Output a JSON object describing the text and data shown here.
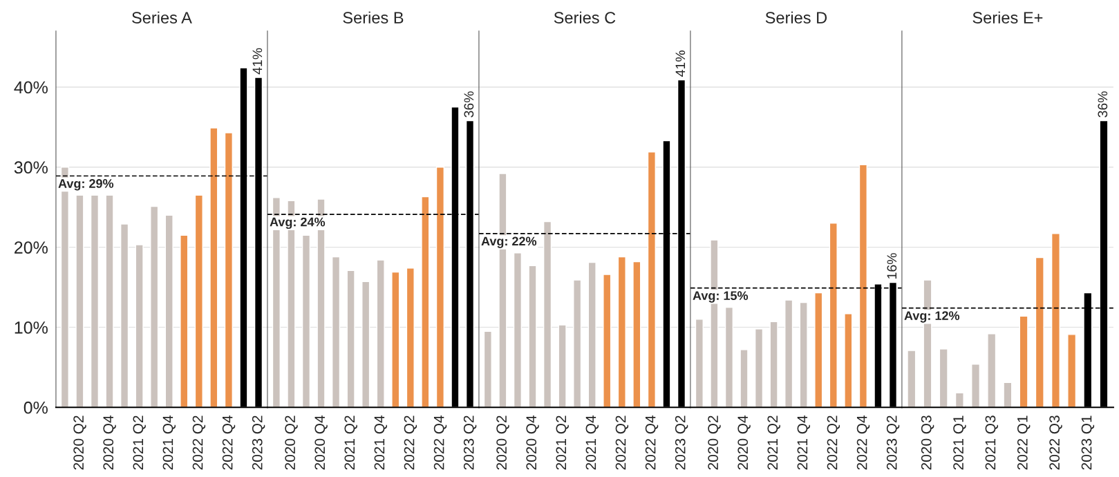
{
  "chart_data": [
    {
      "type": "bar",
      "title": "Series A",
      "categories": [
        null,
        "2020 Q2",
        null,
        "2020 Q4",
        null,
        "2021 Q2",
        null,
        "2021 Q4",
        null,
        "2022 Q2",
        null,
        "2022 Q4",
        null,
        "2023 Q2"
      ],
      "values": [
        30.0,
        26.5,
        26.5,
        26.5,
        22.9,
        20.3,
        25.1,
        24.0,
        21.5,
        26.5,
        34.9,
        34.3,
        42.4,
        41.2
      ],
      "colors": [
        "#cbc2bd",
        "#cbc2bd",
        "#cbc2bd",
        "#cbc2bd",
        "#cbc2bd",
        "#cbc2bd",
        "#cbc2bd",
        "#cbc2bd",
        "#ec914b",
        "#ec914b",
        "#ec914b",
        "#ec914b",
        "#000000",
        "#000000"
      ],
      "value_labels": [
        null,
        null,
        null,
        null,
        null,
        null,
        null,
        null,
        null,
        null,
        null,
        null,
        null,
        "41%"
      ],
      "ylim": [
        0,
        47
      ],
      "yticks": [
        {
          "value": 0,
          "label": "0%"
        },
        {
          "value": 10,
          "label": "10%"
        },
        {
          "value": 20,
          "label": "20%"
        },
        {
          "value": 30,
          "label": "30%"
        },
        {
          "value": 40,
          "label": "40%"
        }
      ],
      "grid": "y",
      "ref_lines": [
        {
          "axis": "y",
          "value": 28.9,
          "label": "Avg: 29%",
          "color": "#000000",
          "line_style": "dashed"
        }
      ]
    },
    {
      "type": "bar",
      "title": "Series B",
      "categories": [
        null,
        "2020 Q2",
        null,
        "2020 Q4",
        null,
        "2021 Q2",
        null,
        "2021 Q4",
        null,
        "2022 Q2",
        null,
        "2022 Q4",
        null,
        "2023 Q2"
      ],
      "values": [
        26.2,
        25.8,
        21.5,
        26.0,
        18.8,
        17.1,
        15.7,
        18.4,
        16.9,
        17.4,
        26.3,
        30.0,
        37.5,
        35.8
      ],
      "colors": [
        "#cbc2bd",
        "#cbc2bd",
        "#cbc2bd",
        "#cbc2bd",
        "#cbc2bd",
        "#cbc2bd",
        "#cbc2bd",
        "#cbc2bd",
        "#ec914b",
        "#ec914b",
        "#ec914b",
        "#ec914b",
        "#000000",
        "#000000"
      ],
      "value_labels": [
        null,
        null,
        null,
        null,
        null,
        null,
        null,
        null,
        null,
        null,
        null,
        null,
        null,
        "36%"
      ],
      "ylim": [
        0,
        47
      ],
      "yticks": [
        0,
        10,
        20,
        30,
        40
      ],
      "tick_labels": "x",
      "grid": "y",
      "ref_lines": [
        {
          "axis": "y",
          "value": 24.1,
          "label": "Avg: 24%",
          "color": "#000000",
          "line_style": "dashed"
        }
      ]
    },
    {
      "type": "bar",
      "title": "Series C",
      "categories": [
        null,
        "2020 Q2",
        null,
        "2020 Q4",
        null,
        "2021 Q2",
        null,
        "2021 Q4",
        null,
        "2022 Q2",
        null,
        "2022 Q4",
        null,
        "2023 Q2"
      ],
      "values": [
        9.5,
        29.2,
        19.3,
        17.7,
        23.2,
        10.3,
        15.9,
        18.1,
        16.6,
        18.8,
        18.2,
        31.9,
        33.3,
        40.9
      ],
      "colors": [
        "#cbc2bd",
        "#cbc2bd",
        "#cbc2bd",
        "#cbc2bd",
        "#cbc2bd",
        "#cbc2bd",
        "#cbc2bd",
        "#cbc2bd",
        "#ec914b",
        "#ec914b",
        "#ec914b",
        "#ec914b",
        "#000000",
        "#000000"
      ],
      "value_labels": [
        null,
        null,
        null,
        null,
        null,
        null,
        null,
        null,
        null,
        null,
        null,
        null,
        null,
        "41%"
      ],
      "ylim": [
        0,
        47
      ],
      "yticks": [
        0,
        10,
        20,
        30,
        40
      ],
      "tick_labels": "x",
      "grid": "y",
      "ref_lines": [
        {
          "axis": "y",
          "value": 21.7,
          "label": "Avg: 22%",
          "color": "#000000",
          "line_style": "dashed"
        }
      ]
    },
    {
      "type": "bar",
      "title": "Series D",
      "categories": [
        null,
        "2020 Q2",
        null,
        "2020 Q4",
        null,
        "2021 Q2",
        null,
        "2021 Q4",
        null,
        "2022 Q2",
        null,
        "2022 Q4",
        null,
        "2023 Q2"
      ],
      "values": [
        11.0,
        20.9,
        12.5,
        7.2,
        9.8,
        10.7,
        13.4,
        13.1,
        14.3,
        23.0,
        11.7,
        30.3,
        15.4,
        15.6
      ],
      "colors": [
        "#cbc2bd",
        "#cbc2bd",
        "#cbc2bd",
        "#cbc2bd",
        "#cbc2bd",
        "#cbc2bd",
        "#cbc2bd",
        "#cbc2bd",
        "#ec914b",
        "#ec914b",
        "#ec914b",
        "#ec914b",
        "#000000",
        "#000000"
      ],
      "value_labels": [
        null,
        null,
        null,
        null,
        null,
        null,
        null,
        null,
        null,
        null,
        null,
        null,
        null,
        "16%"
      ],
      "ylim": [
        0,
        47
      ],
      "yticks": [
        0,
        10,
        20,
        30,
        40
      ],
      "tick_labels": "x",
      "grid": "y",
      "ref_lines": [
        {
          "axis": "y",
          "value": 14.9,
          "label": "Avg: 15%",
          "color": "#000000",
          "line_style": "dashed"
        }
      ]
    },
    {
      "type": "bar",
      "title": "Series E+",
      "categories": [
        null,
        "2020 Q3",
        null,
        "2021 Q1",
        null,
        "2021 Q3",
        null,
        "2022 Q1",
        null,
        "2022 Q3",
        null,
        "2023 Q1",
        null
      ],
      "values": [
        7.1,
        15.9,
        7.3,
        1.8,
        5.4,
        9.2,
        3.1,
        11.4,
        18.7,
        21.7,
        9.1,
        14.3,
        35.8
      ],
      "colors": [
        "#cbc2bd",
        "#cbc2bd",
        "#cbc2bd",
        "#cbc2bd",
        "#cbc2bd",
        "#cbc2bd",
        "#cbc2bd",
        "#ec914b",
        "#ec914b",
        "#ec914b",
        "#ec914b",
        "#000000",
        "#000000"
      ],
      "value_labels": [
        null,
        null,
        null,
        null,
        null,
        null,
        null,
        null,
        null,
        null,
        null,
        null,
        "36%"
      ],
      "ylim": [
        0,
        47
      ],
      "yticks": [
        0,
        10,
        20,
        30,
        40
      ],
      "tick_labels": "x",
      "grid": "y",
      "ref_lines": [
        {
          "axis": "y",
          "value": 12.4,
          "label": "Avg: 12%",
          "color": "#000000",
          "line_style": "dashed"
        }
      ]
    }
  ]
}
